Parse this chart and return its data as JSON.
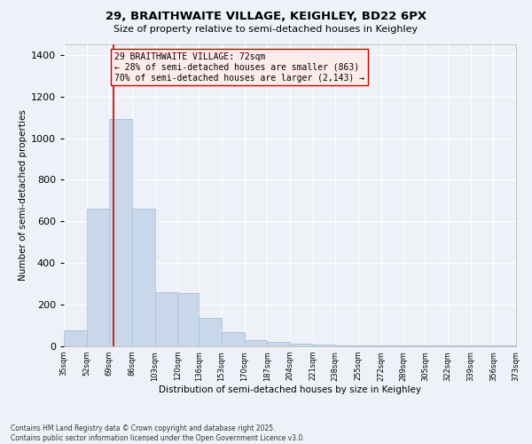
{
  "title_line1": "29, BRAITHWAITE VILLAGE, KEIGHLEY, BD22 6PX",
  "title_line2": "Size of property relative to semi-detached houses in Keighley",
  "xlabel": "Distribution of semi-detached houses by size in Keighley",
  "ylabel": "Number of semi-detached properties",
  "bar_color": "#c8d8ea",
  "bar_edge_color": "#aabfd4",
  "background_color": "#eef2f8",
  "grid_color": "#ffffff",
  "annotation_text": "29 BRAITHWAITE VILLAGE: 72sqm\n← 28% of semi-detached houses are smaller (863)\n70% of semi-detached houses are larger (2,143) →",
  "property_size": 72,
  "red_line_color": "#cc0000",
  "annotation_box_facecolor": "#fdecea",
  "annotation_box_edge": "#cc0000",
  "footer_text": "Contains HM Land Registry data © Crown copyright and database right 2025.\nContains public sector information licensed under the Open Government Licence v3.0.",
  "bins": [
    35,
    52,
    69,
    86,
    103,
    120,
    136,
    153,
    170,
    187,
    204,
    221,
    238,
    255,
    272,
    289,
    305,
    322,
    339,
    356,
    373
  ],
  "bin_labels": [
    "35sqm",
    "52sqm",
    "69sqm",
    "86sqm",
    "103sqm",
    "120sqm",
    "136sqm",
    "153sqm",
    "170sqm",
    "187sqm",
    "204sqm",
    "221sqm",
    "238sqm",
    "255sqm",
    "272sqm",
    "289sqm",
    "305sqm",
    "322sqm",
    "339sqm",
    "356sqm",
    "373sqm"
  ],
  "values": [
    75,
    660,
    1090,
    660,
    260,
    255,
    135,
    70,
    30,
    20,
    13,
    8,
    5,
    5,
    4,
    4,
    4,
    4,
    4,
    3
  ],
  "ylim": [
    0,
    1450
  ],
  "yticks": [
    0,
    200,
    400,
    600,
    800,
    1000,
    1200,
    1400
  ]
}
